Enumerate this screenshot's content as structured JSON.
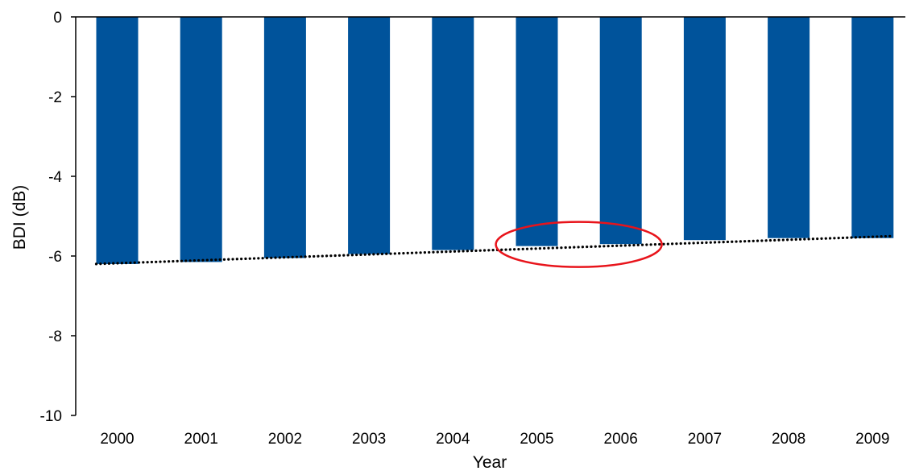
{
  "chart_data": {
    "type": "bar",
    "categories": [
      "2000",
      "2001",
      "2002",
      "2003",
      "2004",
      "2005",
      "2006",
      "2007",
      "2008",
      "2009"
    ],
    "values": [
      -6.2,
      -6.15,
      -6.05,
      -5.95,
      -5.85,
      -5.75,
      -5.7,
      -5.6,
      -5.55,
      -5.55
    ],
    "title": "",
    "xlabel": "Year",
    "ylabel": "BDI (dB)",
    "ylim": [
      -10,
      0
    ],
    "yticks": [
      "0",
      "-2",
      "-4",
      "-6",
      "-8",
      "-10"
    ],
    "bar_color": "#00539B",
    "trendline": {
      "style": "dotted",
      "color": "#000000",
      "from": [
        "2000",
        -6.2
      ],
      "to": [
        "2009",
        -5.5
      ]
    },
    "annotation": {
      "shape": "ellipse",
      "color": "#E8141B",
      "between": [
        "2005",
        "2006"
      ],
      "y_center": -5.75
    },
    "grid": false,
    "legend": "none"
  }
}
